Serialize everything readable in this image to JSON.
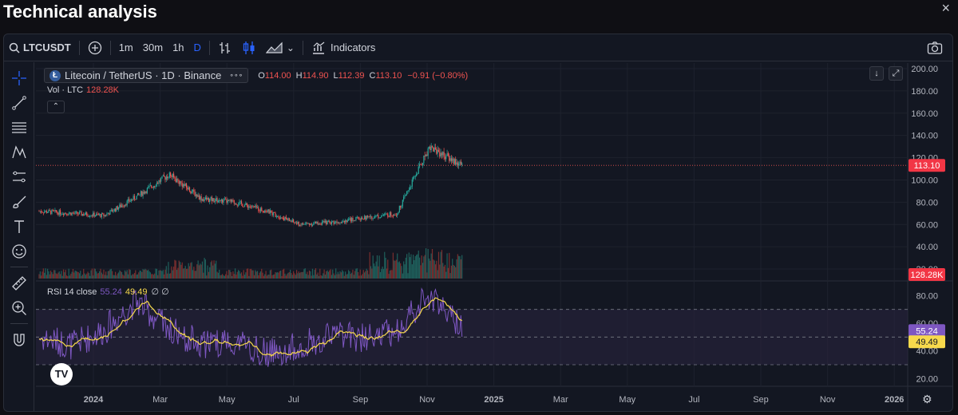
{
  "page": {
    "title": "Technical analysis",
    "close_icon": "×"
  },
  "toolbar": {
    "symbol": "LTCUSDT",
    "timeframes": [
      "1m",
      "30m",
      "1h",
      "D"
    ],
    "active_timeframe": "D",
    "indicators_label": "Indicators",
    "chevron": "⌄"
  },
  "legend": {
    "title": "Litecoin / TetherUS · 1D · Binance",
    "logo_letter": "Ł",
    "more": "∘∘∘",
    "o_label": "O",
    "o": "114.00",
    "h_label": "H",
    "h": "114.90",
    "l_label": "L",
    "l": "112.39",
    "c_label": "C",
    "c": "113.10",
    "change": "−0.91 (−0.80%)"
  },
  "volume_legend": {
    "label": "Vol · LTC",
    "value": "128.28K"
  },
  "collapse_icon": "⌃",
  "rsi_legend": {
    "label": "RSI 14 close",
    "value1": "55.24",
    "value2": "49.49",
    "extra": "∅ ∅"
  },
  "buttons": {
    "scroll_down": "↓",
    "fullscreen": "⤢"
  },
  "tv_logo": "TV",
  "settings_icon": "⚙",
  "colors": {
    "bg": "#131722",
    "grid": "#1e222d",
    "up": "#26a69a",
    "down": "#ef5350",
    "rsi_line": "#7e57c2",
    "rsi_ma": "#f7d94c",
    "rsi_band": "#2a2540",
    "price_line": "#ef5350",
    "vol_up": "#1f5f5b",
    "vol_down": "#7a2e2e"
  },
  "chart_data": {
    "type": "line",
    "title": "Litecoin / TetherUS · 1D · Binance",
    "price_axis": {
      "ticks": [
        20,
        40,
        60,
        80,
        100,
        120,
        140,
        160,
        180,
        200
      ],
      "ylim": [
        10,
        205
      ],
      "current_label": "113.10",
      "current_value": 113.1
    },
    "volume_axis": {
      "current_label": "128.28K"
    },
    "rsi_axis": {
      "ticks": [
        20,
        40,
        60,
        80
      ],
      "ylim": [
        15,
        90
      ],
      "bands": [
        30,
        70
      ],
      "mid": 50,
      "current": 55.24,
      "current_ma": 49.49,
      "current_label": "55.24",
      "current_ma_label": "49.49"
    },
    "x_axis": {
      "labels": [
        "2024",
        "Mar",
        "May",
        "Jul",
        "Sep",
        "Nov",
        "2025",
        "Mar",
        "May",
        "Jul",
        "Sep",
        "Nov",
        "2026"
      ]
    },
    "series": [
      {
        "name": "LTCUSDT",
        "x": [
          "2023-12",
          "2024-01",
          "2024-02",
          "2024-03",
          "2024-04",
          "2024-05",
          "2024-06",
          "2024-07",
          "2024-08",
          "2024-09",
          "2024-10",
          "2024-11",
          "2024-12",
          "2025-01"
        ],
        "values": [
          72,
          70,
          68,
          85,
          105,
          83,
          80,
          72,
          60,
          62,
          66,
          70,
          130,
          113
        ]
      },
      {
        "name": "RSI",
        "x": [
          "2023-12",
          "2024-01",
          "2024-02",
          "2024-03",
          "2024-04",
          "2024-05",
          "2024-06",
          "2024-07",
          "2024-08",
          "2024-09",
          "2024-10",
          "2024-11",
          "2024-12",
          "2025-01"
        ],
        "values": [
          50,
          44,
          55,
          76,
          55,
          45,
          48,
          38,
          43,
          52,
          50,
          55,
          80,
          55
        ]
      }
    ]
  }
}
